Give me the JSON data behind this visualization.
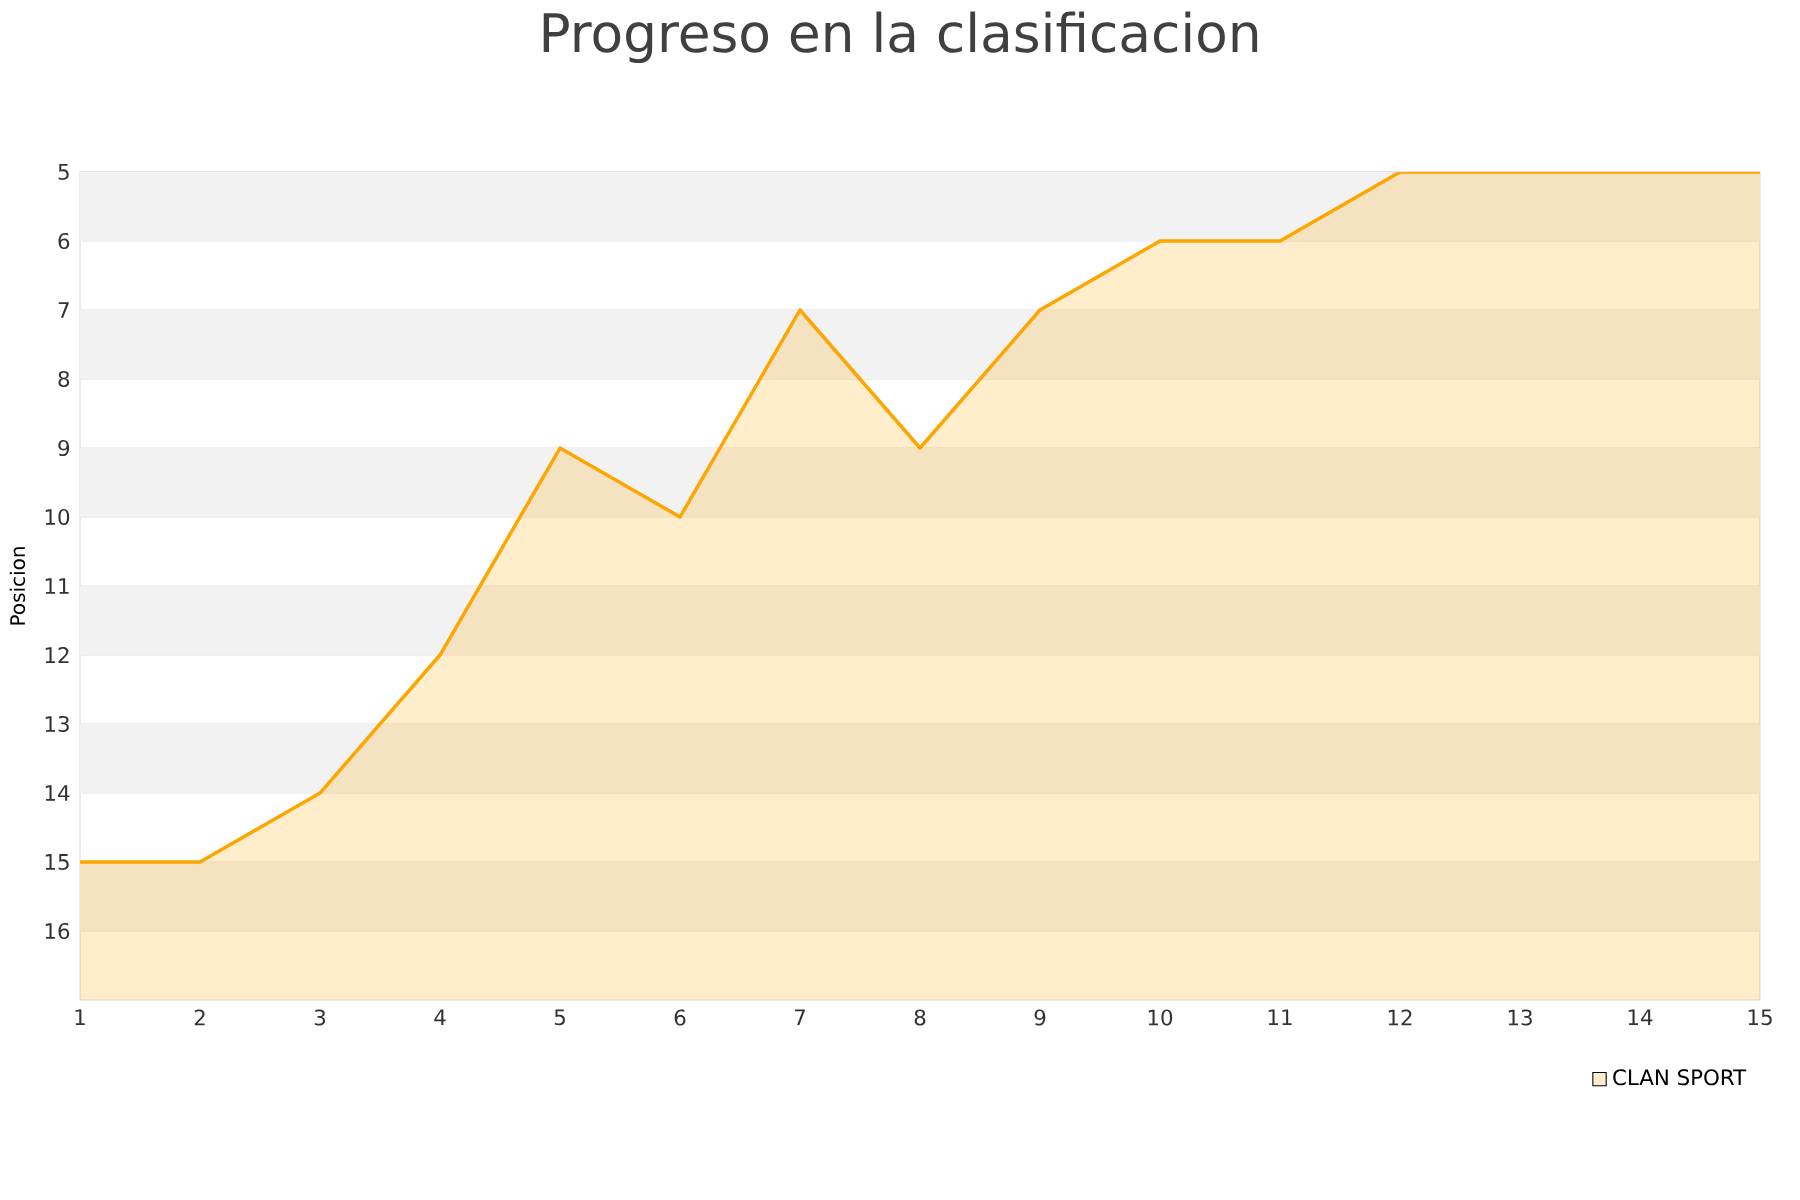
{
  "chart_data": {
    "type": "line",
    "title": "Progreso en la clasificacion",
    "ylabel": "Posicion",
    "x": [
      1,
      2,
      3,
      4,
      5,
      6,
      7,
      8,
      9,
      10,
      11,
      12,
      13,
      14,
      15
    ],
    "series": [
      {
        "name": "CLAN SPORT",
        "color": "#ffa500",
        "values": [
          15,
          15,
          14,
          12,
          9,
          10,
          7,
          9,
          7,
          6,
          6,
          5,
          5,
          5,
          5
        ],
        "upper": [
          15,
          15,
          14,
          12,
          9,
          10,
          7,
          9,
          7,
          6,
          6,
          5,
          5,
          5,
          5
        ],
        "lower": [
          17,
          17,
          17,
          17,
          17,
          17,
          17,
          17,
          17,
          17,
          17,
          17,
          17,
          17,
          17
        ]
      }
    ],
    "xlim": [
      1,
      15
    ],
    "xticks": [
      1,
      2,
      3,
      4,
      5,
      6,
      7,
      8,
      9,
      10,
      11,
      12,
      13,
      14,
      15
    ],
    "ylim": [
      17,
      5
    ],
    "yticks": [
      5,
      6,
      7,
      8,
      9,
      10,
      11,
      12,
      13,
      14,
      15,
      16
    ],
    "grid": "y",
    "legend": "bottom right",
    "bands": [
      {
        "axis": "y",
        "from": 5,
        "to": 6,
        "color": "#f2f2f2"
      },
      {
        "axis": "y",
        "from": 7,
        "to": 8,
        "color": "#f2f2f2"
      },
      {
        "axis": "y",
        "from": 9,
        "to": 10,
        "color": "#f2f2f2"
      },
      {
        "axis": "y",
        "from": 11,
        "to": 12,
        "color": "#f2f2f2"
      },
      {
        "axis": "y",
        "from": 13,
        "to": 14,
        "color": "#f2f2f2"
      },
      {
        "axis": "y",
        "from": 15,
        "to": 16,
        "color": "#f2f2f2"
      }
    ]
  }
}
